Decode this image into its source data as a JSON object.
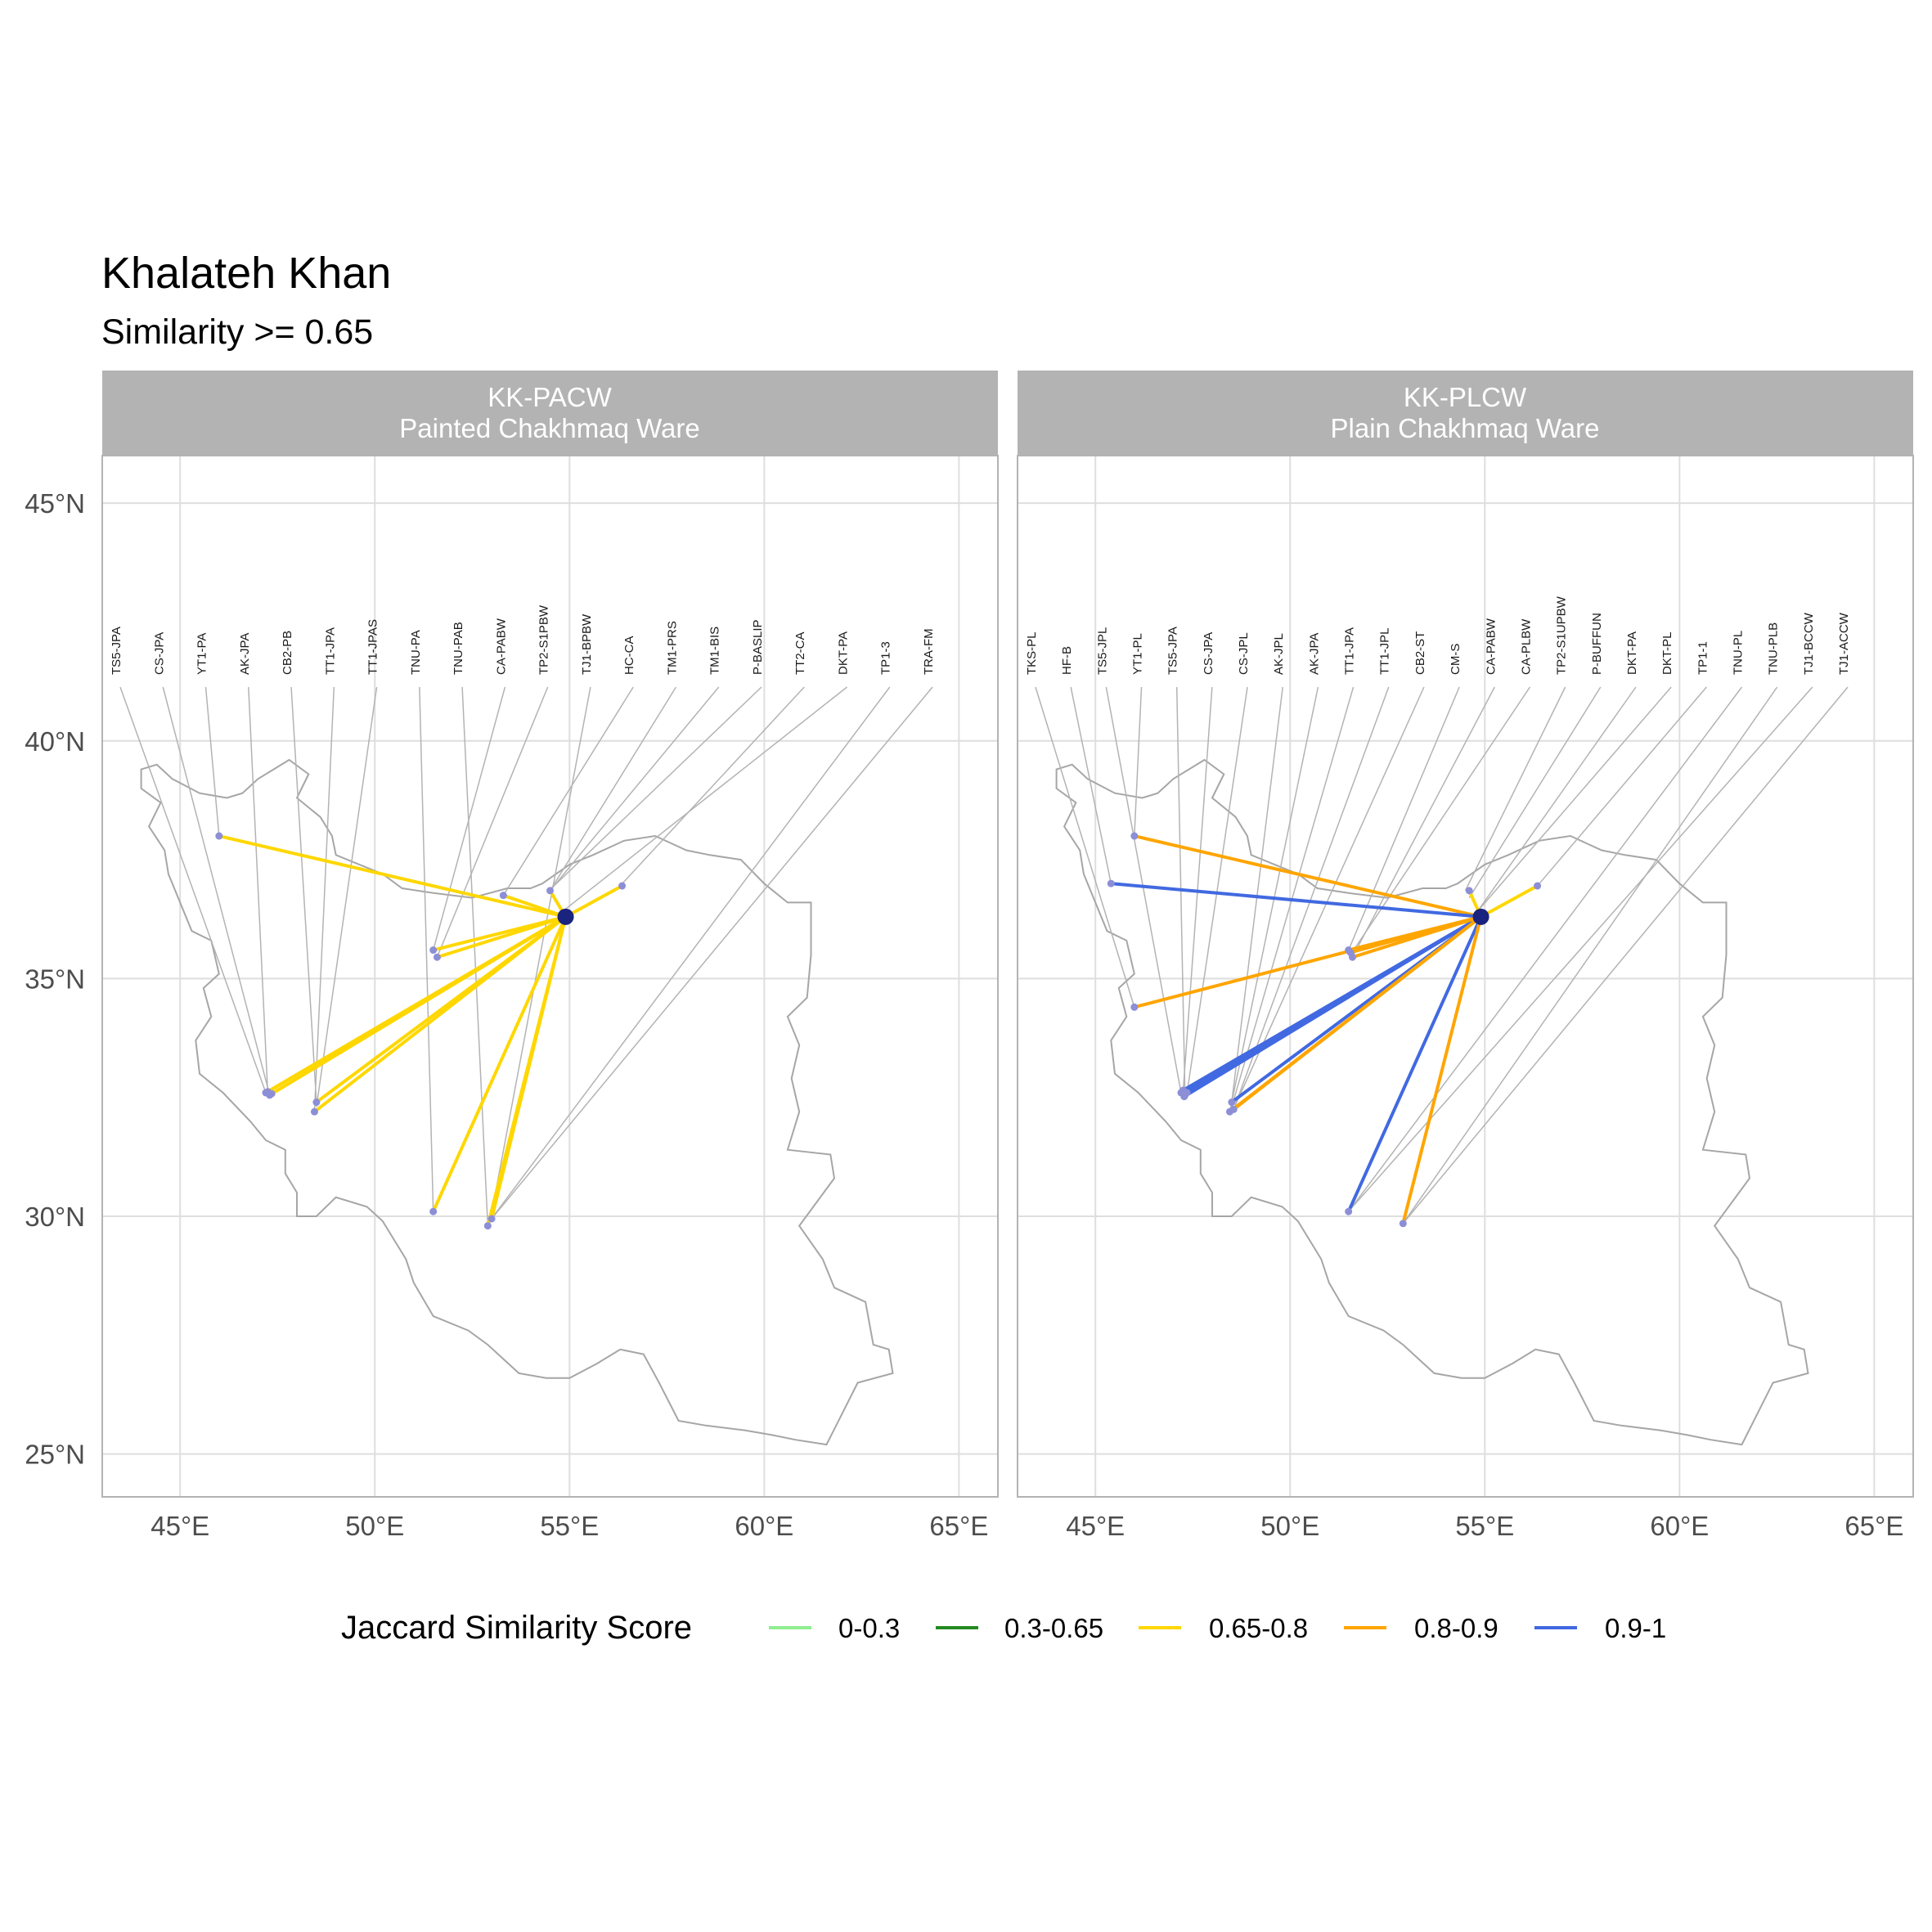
{
  "title": "Khalateh Khan",
  "subtitle": "Similarity >= 0.65",
  "axes": {
    "lon_ticks": [
      45,
      50,
      55,
      60,
      65
    ],
    "lat_ticks": [
      25,
      30,
      35,
      40,
      45
    ],
    "lon_labels": [
      "45°E",
      "50°E",
      "55°E",
      "60°E",
      "65°E"
    ],
    "lat_labels": [
      "25°N",
      "30°N",
      "35°N",
      "40°N",
      "45°N"
    ],
    "lon_range": [
      43,
      66
    ],
    "lat_range": [
      24.1,
      46
    ]
  },
  "legend": {
    "title": "Jaccard Similarity Score",
    "position": "bottom",
    "items": [
      {
        "label": "0-0.3",
        "color": "#90EE90"
      },
      {
        "label": "0.3-0.65",
        "color": "#228B22"
      },
      {
        "label": "0.65-0.8",
        "color": "#FFD700"
      },
      {
        "label": "0.8-0.9",
        "color": "#FFA500"
      },
      {
        "label": "0.9-1",
        "color": "#4169E1"
      }
    ]
  },
  "colors": {
    "strip_bg": "#b3b3b3",
    "grid": "#dedede",
    "border": "#b3b3b3",
    "map_outline": "#a6a6a6",
    "leader": "#b3b3b3",
    "site_point": "#8c8fd6",
    "origin_point": "#1a237e"
  },
  "chart_data": [
    {
      "type": "map",
      "panel_line1": "KK-PACW",
      "panel_line2": "Painted Chakhmaq Ware",
      "origin": {
        "lon": 54.9,
        "lat": 36.3
      },
      "site_labels": [
        "TS5-JPA",
        "CS-JPA",
        "YT1-PA",
        "AK-JPA",
        "CB2-PB",
        "TT1-JPA",
        "TT1-JPAS",
        "TNU-PA",
        "TNU-PAB",
        "CA-PABW",
        "TP2-S1PBW",
        "TJ1-BPBW",
        "HC-CA",
        "TM1-PRS",
        "TM1-BIS",
        "P-BASLIP",
        "TT2-CA",
        "DKT-PA",
        "TP1-3",
        "TRA-FM"
      ],
      "label_targets": [
        {
          "lon": 47.2,
          "lat": 32.6
        },
        {
          "lon": 47.3,
          "lat": 32.55
        },
        {
          "lon": 46.0,
          "lat": 38.0
        },
        {
          "lon": 47.25,
          "lat": 32.6
        },
        {
          "lon": 48.5,
          "lat": 32.4
        },
        {
          "lon": 48.45,
          "lat": 32.2
        },
        {
          "lon": 48.5,
          "lat": 32.3
        },
        {
          "lon": 51.5,
          "lat": 30.1
        },
        {
          "lon": 52.9,
          "lat": 29.8
        },
        {
          "lon": 51.5,
          "lat": 35.6
        },
        {
          "lon": 51.6,
          "lat": 35.45
        },
        {
          "lon": 52.95,
          "lat": 29.85
        },
        {
          "lon": 53.3,
          "lat": 36.75
        },
        {
          "lon": 54.5,
          "lat": 36.85
        },
        {
          "lon": 54.55,
          "lat": 36.9
        },
        {
          "lon": 54.6,
          "lat": 36.95
        },
        {
          "lon": 56.3,
          "lat": 36.95
        },
        {
          "lon": 54.8,
          "lat": 36.4
        },
        {
          "lon": 52.95,
          "lat": 29.9
        },
        {
          "lon": 53.0,
          "lat": 29.95
        }
      ],
      "connections": [
        {
          "lon": 46.0,
          "lat": 38.0,
          "score": "0.65-0.8"
        },
        {
          "lon": 47.2,
          "lat": 32.6,
          "score": "0.65-0.8"
        },
        {
          "lon": 47.3,
          "lat": 32.55,
          "score": "0.65-0.8"
        },
        {
          "lon": 47.25,
          "lat": 32.62,
          "score": "0.65-0.8"
        },
        {
          "lon": 47.35,
          "lat": 32.58,
          "score": "0.65-0.8"
        },
        {
          "lon": 48.5,
          "lat": 32.4,
          "score": "0.65-0.8"
        },
        {
          "lon": 48.45,
          "lat": 32.2,
          "score": "0.65-0.8"
        },
        {
          "lon": 51.5,
          "lat": 35.6,
          "score": "0.65-0.8"
        },
        {
          "lon": 51.6,
          "lat": 35.45,
          "score": "0.65-0.8"
        },
        {
          "lon": 51.5,
          "lat": 30.1,
          "score": "0.65-0.8"
        },
        {
          "lon": 52.9,
          "lat": 29.8,
          "score": "0.65-0.8"
        },
        {
          "lon": 53.0,
          "lat": 29.95,
          "score": "0.65-0.8"
        },
        {
          "lon": 53.3,
          "lat": 36.75,
          "score": "0.65-0.8"
        },
        {
          "lon": 54.5,
          "lat": 36.85,
          "score": "0.65-0.8"
        },
        {
          "lon": 56.35,
          "lat": 36.95,
          "score": "0.65-0.8"
        }
      ]
    },
    {
      "type": "map",
      "panel_line1": "KK-PLCW",
      "panel_line2": "Plain Chakhmaq Ware",
      "origin": {
        "lon": 54.9,
        "lat": 36.3
      },
      "site_labels": [
        "TKS-PL",
        "HF-B",
        "TS5-JPL",
        "YT1-PL",
        "TS5-JPA",
        "CS-JPA",
        "CS-JPL",
        "AK-JPL",
        "AK-JPA",
        "TT1-JPA",
        "TT1-JPL",
        "CB2-ST",
        "CM-S",
        "CA-PABW",
        "CA-PLBW",
        "TP2-S1UPBW",
        "P-BUFFUN",
        "DKT-PA",
        "DKT-PL",
        "TP1-1",
        "TNU-PL",
        "TNU-PLB",
        "TJ1-BCCW",
        "TJ1-ACCW"
      ],
      "label_targets": [
        {
          "lon": 46.0,
          "lat": 34.4
        },
        {
          "lon": 45.4,
          "lat": 37.0
        },
        {
          "lon": 47.2,
          "lat": 32.6
        },
        {
          "lon": 46.0,
          "lat": 38.0
        },
        {
          "lon": 47.3,
          "lat": 32.55
        },
        {
          "lon": 47.25,
          "lat": 32.6
        },
        {
          "lon": 47.35,
          "lat": 32.58
        },
        {
          "lon": 48.5,
          "lat": 32.4
        },
        {
          "lon": 48.45,
          "lat": 32.2
        },
        {
          "lon": 48.5,
          "lat": 32.3
        },
        {
          "lon": 48.55,
          "lat": 32.25
        },
        {
          "lon": 48.6,
          "lat": 32.35
        },
        {
          "lon": 51.5,
          "lat": 35.6
        },
        {
          "lon": 51.6,
          "lat": 35.45
        },
        {
          "lon": 51.55,
          "lat": 35.5
        },
        {
          "lon": 54.5,
          "lat": 36.85
        },
        {
          "lon": 54.6,
          "lat": 36.7
        },
        {
          "lon": 54.8,
          "lat": 36.4
        },
        {
          "lon": 54.85,
          "lat": 36.45
        },
        {
          "lon": 56.35,
          "lat": 36.95
        },
        {
          "lon": 51.5,
          "lat": 30.1
        },
        {
          "lon": 52.9,
          "lat": 29.85
        },
        {
          "lon": 51.55,
          "lat": 30.15
        },
        {
          "lon": 52.95,
          "lat": 29.9
        }
      ],
      "connections": [
        {
          "lon": 46.0,
          "lat": 38.0,
          "score": "0.8-0.9"
        },
        {
          "lon": 45.4,
          "lat": 37.0,
          "score": "0.9-1"
        },
        {
          "lon": 46.0,
          "lat": 34.4,
          "score": "0.8-0.9"
        },
        {
          "lon": 47.2,
          "lat": 32.6,
          "score": "0.9-1"
        },
        {
          "lon": 47.3,
          "lat": 32.55,
          "score": "0.9-1"
        },
        {
          "lon": 47.25,
          "lat": 32.65,
          "score": "0.9-1"
        },
        {
          "lon": 47.35,
          "lat": 32.6,
          "score": "0.9-1"
        },
        {
          "lon": 47.28,
          "lat": 32.52,
          "score": "0.9-1"
        },
        {
          "lon": 48.5,
          "lat": 32.4,
          "score": "0.9-1"
        },
        {
          "lon": 48.45,
          "lat": 32.2,
          "score": "0.8-0.9"
        },
        {
          "lon": 48.55,
          "lat": 32.25,
          "score": "0.8-0.9"
        },
        {
          "lon": 51.5,
          "lat": 35.6,
          "score": "0.8-0.9"
        },
        {
          "lon": 51.6,
          "lat": 35.45,
          "score": "0.8-0.9"
        },
        {
          "lon": 51.55,
          "lat": 35.55,
          "score": "0.8-0.9"
        },
        {
          "lon": 51.5,
          "lat": 30.1,
          "score": "0.9-1"
        },
        {
          "lon": 52.9,
          "lat": 29.85,
          "score": "0.8-0.9"
        },
        {
          "lon": 54.6,
          "lat": 36.85,
          "score": "0.65-0.8"
        },
        {
          "lon": 56.35,
          "lat": 36.95,
          "score": "0.65-0.8"
        }
      ]
    }
  ]
}
